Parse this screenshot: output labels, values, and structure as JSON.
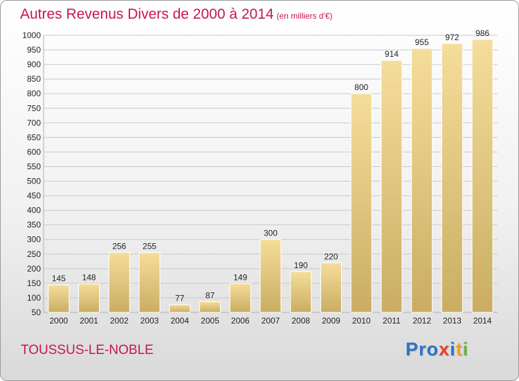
{
  "header": {
    "title": "Autres Revenus Divers de 2000 à 2014",
    "subtitle": "(en milliers d'€)"
  },
  "footer": {
    "location": "TOUSSUS-LE-NOBLE",
    "logo_text": "Proxiti",
    "logo_letters": [
      {
        "char": "P",
        "color": "#2e73c8"
      },
      {
        "char": "r",
        "color": "#2e73c8"
      },
      {
        "char": "o",
        "color": "#2e73c8"
      },
      {
        "char": "x",
        "color": "#e8412c"
      },
      {
        "char": "i",
        "color": "#2e73c8"
      },
      {
        "char": "t",
        "color": "#f0a020"
      },
      {
        "char": "i",
        "color": "#6cb33e"
      }
    ]
  },
  "colors": {
    "bar_top": "#f5dd9a",
    "bar_bottom": "#c9ad63",
    "grid": "#c9c9c9",
    "title": "#c8145a"
  },
  "chart_data": {
    "type": "bar",
    "title": "Autres Revenus Divers de 2000 à 2014",
    "subtitle": "(en milliers d'€)",
    "xlabel": "",
    "ylabel": "",
    "categories": [
      "2000",
      "2001",
      "2002",
      "2003",
      "2004",
      "2005",
      "2006",
      "2007",
      "2008",
      "2009",
      "2010",
      "2011",
      "2012",
      "2013",
      "2014"
    ],
    "values": [
      145,
      148,
      256,
      255,
      77,
      87,
      149,
      300,
      190,
      220,
      800,
      914,
      955,
      972,
      986
    ],
    "ylim": [
      50,
      1000
    ],
    "yticks": [
      50,
      100,
      150,
      200,
      250,
      300,
      350,
      400,
      450,
      500,
      550,
      600,
      650,
      700,
      750,
      800,
      850,
      900,
      950,
      1000
    ],
    "grid": true,
    "legend": "none"
  }
}
